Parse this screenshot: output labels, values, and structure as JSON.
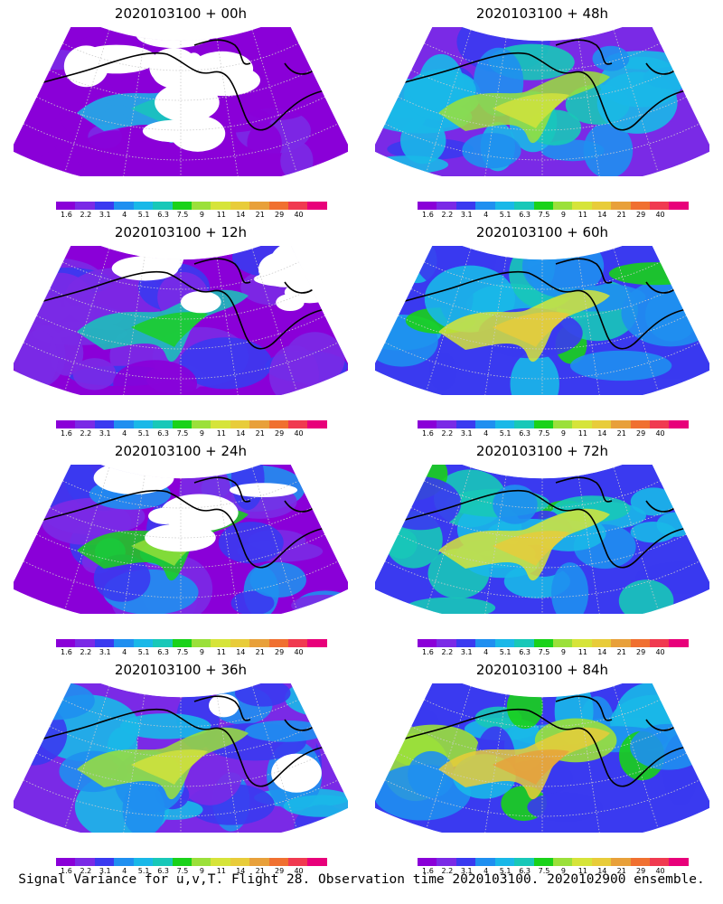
{
  "panels": [
    {
      "title": "2020103100 + 00h",
      "intensity": 0.1,
      "white": 0.55
    },
    {
      "title": "2020103100 + 48h",
      "intensity": 0.55,
      "white": 0.0
    },
    {
      "title": "2020103100 + 12h",
      "intensity": 0.25,
      "white": 0.45
    },
    {
      "title": "2020103100 + 60h",
      "intensity": 0.6,
      "white": 0.0
    },
    {
      "title": "2020103100 + 24h",
      "intensity": 0.35,
      "white": 0.25
    },
    {
      "title": "2020103100 + 72h",
      "intensity": 0.65,
      "white": 0.0
    },
    {
      "title": "2020103100 + 36h",
      "intensity": 0.45,
      "white": 0.08
    },
    {
      "title": "2020103100 + 84h",
      "intensity": 0.72,
      "white": 0.0
    }
  ],
  "colorbar": {
    "labels": [
      "1.6",
      "2.2",
      "3.1",
      "4",
      "5.1",
      "6.3",
      "7.5",
      "9",
      "11",
      "14",
      "21",
      "29",
      "40"
    ],
    "colors": [
      "#8a00d8",
      "#7a2ae6",
      "#3a3af0",
      "#1f8ff0",
      "#19b8e8",
      "#18c8b8",
      "#1ad21a",
      "#9be03a",
      "#d6e43a",
      "#e8cc3a",
      "#e8a03a",
      "#f07030",
      "#f03a50",
      "#e8007a"
    ]
  },
  "footer": "Signal Variance for u,v,T. Flight 28. Observation time 2020103100. 2020102900 ensemble."
}
